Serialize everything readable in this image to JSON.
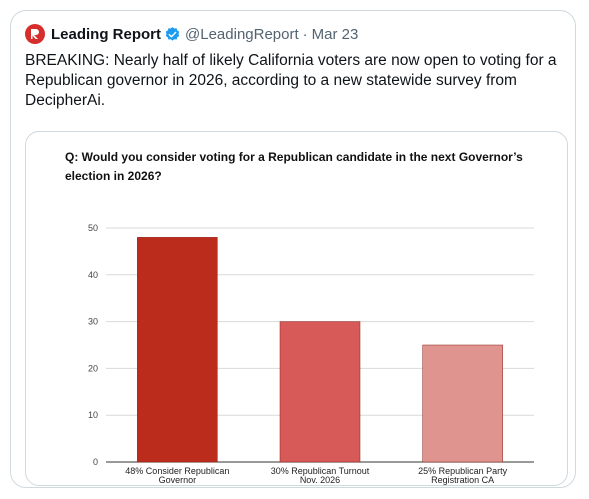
{
  "tweet": {
    "display_name": "Leading Report",
    "handle": "@LeadingReport",
    "separator": "·",
    "date": "Mar 23",
    "text": "BREAKING: Nearly half of likely California voters are now open to voting for a Republican governor in 2026, according to a new statewide survey from DecipherAi.",
    "avatar_icon": "leading-report-logo-icon",
    "verified_icon": "verified-badge-icon",
    "avatar_color": "#d62d2d",
    "verified_color": "#1d9bf0"
  },
  "chart_data": {
    "type": "bar",
    "title": "Q: Would you consider voting for a Republican candidate in the next Governor’s election in 2026?",
    "categories": [
      [
        "48% Consider Republican",
        "Governor"
      ],
      [
        "30% Republican Turnout",
        "Nov. 2026"
      ],
      [
        "25% Republican Party",
        "Registration CA"
      ]
    ],
    "values": [
      48,
      30,
      25
    ],
    "colors": [
      "#bb2c1d",
      "#d75a59",
      "#e09490"
    ],
    "ylim": [
      0,
      50
    ],
    "yticks": [
      0,
      10,
      20,
      30,
      40,
      50
    ],
    "grid": true
  }
}
